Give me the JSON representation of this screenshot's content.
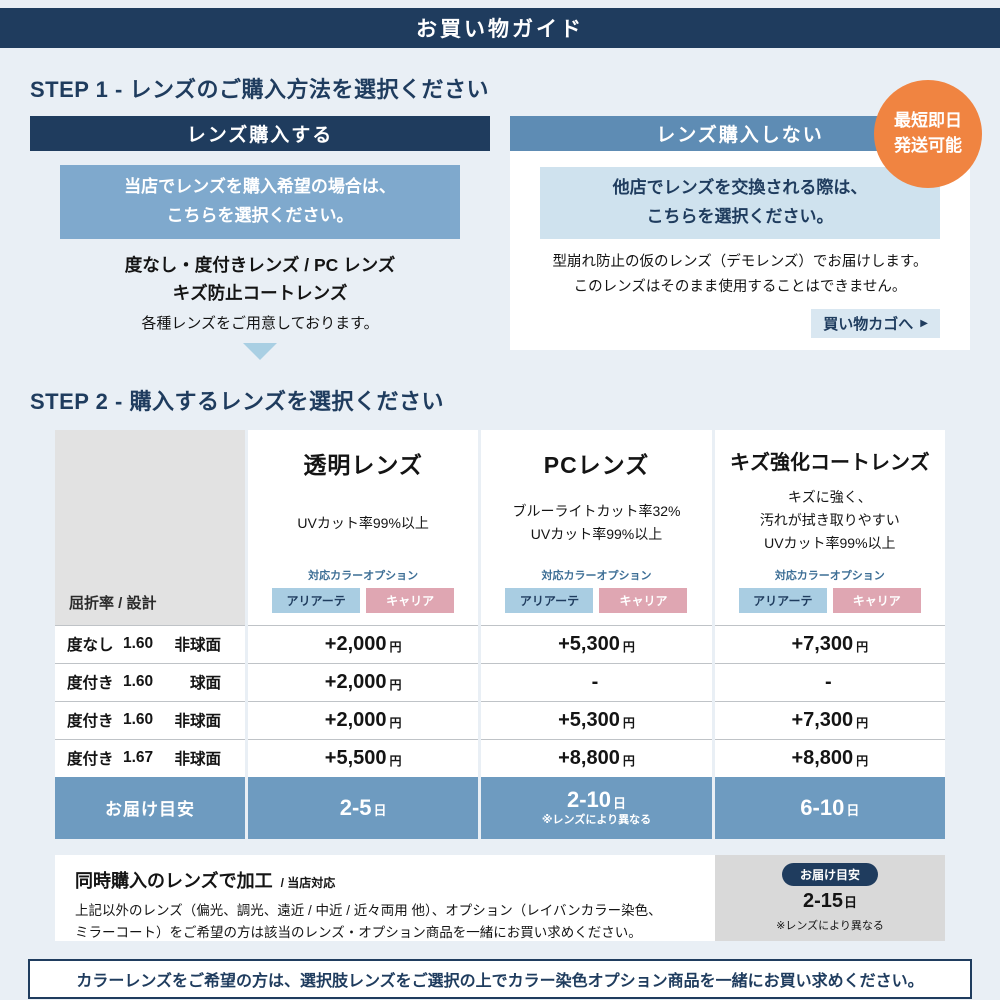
{
  "header": {
    "title": "お買い物ガイド"
  },
  "step1": {
    "heading": "STEP 1 - レンズのご購入方法を選択ください",
    "badge": {
      "text": "最短即日\n発送可能"
    },
    "buy": {
      "title": "レンズ購入する",
      "highlight": "当店でレンズを購入希望の場合は、\nこちらを選択ください。",
      "lens_types": "度なし・度付きレンズ / PC レンズ\nキズ防止コートレンズ",
      "note": "各種レンズをご用意しております。"
    },
    "nobuy": {
      "title": "レンズ購入しない",
      "highlight": "他店でレンズを交換される際は、\nこちらを選択ください。",
      "note": "型崩れ防止の仮のレンズ（デモレンズ）でお届けします。\nこのレンズはそのまま使用することはできません。",
      "cart_link": "買い物カゴへ",
      "cart_arrow": "▶"
    }
  },
  "step2": {
    "heading": "STEP 2 - 購入するレンズを選択ください",
    "table": {
      "corner_label": "屈折率 / 設計",
      "columns": [
        {
          "title": "透明レンズ",
          "desc": "UVカット率99%以上",
          "option_label": "対応カラーオプション",
          "badge1": "アリアーテ",
          "badge2": "キャリア"
        },
        {
          "title": "PCレンズ",
          "desc": "ブルーライトカット率32%\nUVカット率99%以上",
          "option_label": "対応カラーオプション",
          "badge1": "アリアーテ",
          "badge2": "キャリア"
        },
        {
          "title": "キズ強化コートレンズ",
          "desc": "キズに強く、\n汚れが拭き取りやすい\nUVカット率99%以上",
          "option_label": "対応カラーオプション",
          "badge1": "アリアーテ",
          "badge2": "キャリア"
        }
      ],
      "rows": [
        {
          "type": "度なし",
          "index": "1.60",
          "design": "非球面",
          "prices": [
            {
              "v": "+2,000",
              "u": "円"
            },
            {
              "v": "+5,300",
              "u": "円"
            },
            {
              "v": "+7,300",
              "u": "円"
            }
          ]
        },
        {
          "type": "度付き",
          "index": "1.60",
          "design": "球面",
          "prices": [
            {
              "v": "+2,000",
              "u": "円"
            },
            {
              "v": "-",
              "u": ""
            },
            {
              "v": "-",
              "u": ""
            }
          ]
        },
        {
          "type": "度付き",
          "index": "1.60",
          "design": "非球面",
          "prices": [
            {
              "v": "+2,000",
              "u": "円"
            },
            {
              "v": "+5,300",
              "u": "円"
            },
            {
              "v": "+7,300",
              "u": "円"
            }
          ]
        },
        {
          "type": "度付き",
          "index": "1.67",
          "design": "非球面",
          "prices": [
            {
              "v": "+5,500",
              "u": "円"
            },
            {
              "v": "+8,800",
              "u": "円"
            },
            {
              "v": "+8,800",
              "u": "円"
            }
          ]
        }
      ],
      "delivery": {
        "label": "お届け目安",
        "cells": [
          {
            "v": "2-5",
            "u": "日",
            "note": ""
          },
          {
            "v": "2-10",
            "u": "日",
            "note": "※レンズにより異なる"
          },
          {
            "v": "6-10",
            "u": "日",
            "note": ""
          }
        ]
      }
    }
  },
  "footer": {
    "title": "同時購入のレンズで加工",
    "title_suffix": "/ 当店対応",
    "body": "上記以外のレンズ（偏光、調光、遠近 / 中近 / 近々両用 他）、オプション（レイバンカラー染色、\nミラーコート）をご希望の方は該当のレンズ・オプション商品を一緒にお買い求めください。",
    "delivery_box": {
      "badge": "お届け目安",
      "value": "2-15",
      "unit": "日",
      "note": "※レンズにより異なる"
    },
    "bottom_note": "カラーレンズをご希望の方は、選択肢レンズをご選択の上でカラー染色オプション商品を一緒にお買い求めください。"
  },
  "colors": {
    "navy": "#1f3c5e",
    "panel_blue": "#5e8cb4",
    "highlight_blue": "#7fa9cd",
    "light_blue": "#cfe2ee",
    "orange": "#f08441",
    "table_blue": "#6e9bc0",
    "badge_blue": "#a9cde2",
    "badge_pink": "#dfa6b2",
    "page_bg": "#e9eff5"
  }
}
